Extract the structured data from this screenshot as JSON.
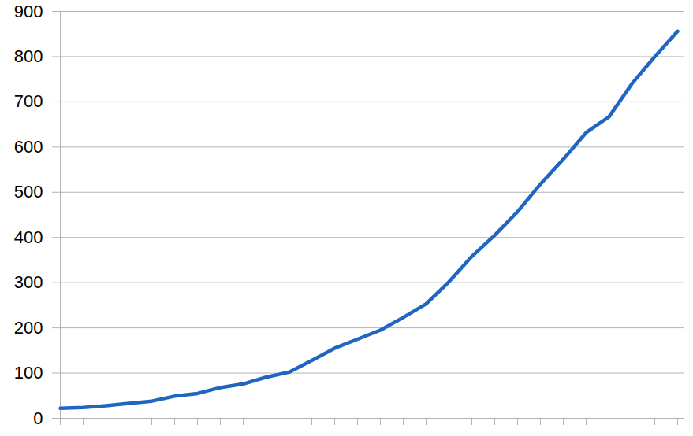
{
  "chart_data": {
    "type": "line",
    "categories": [
      null,
      null,
      null,
      null,
      null,
      null,
      null,
      null,
      null,
      null,
      null,
      null,
      null,
      null,
      null,
      null,
      null,
      null,
      null,
      null,
      null,
      null,
      null,
      null,
      null,
      null,
      null,
      null
    ],
    "values": [
      22,
      24,
      28,
      33,
      38,
      49,
      55,
      68,
      76,
      91,
      102,
      128,
      155,
      175,
      195,
      223,
      253,
      302,
      358,
      405,
      457,
      518,
      573,
      632,
      667,
      740,
      800,
      856
    ],
    "color": "#1f66c2",
    "ylim": [
      0,
      900
    ],
    "yticks": [
      0,
      100,
      200,
      300,
      400,
      500,
      600,
      700,
      800,
      900
    ],
    "grid": true,
    "tick_labels": "y"
  }
}
